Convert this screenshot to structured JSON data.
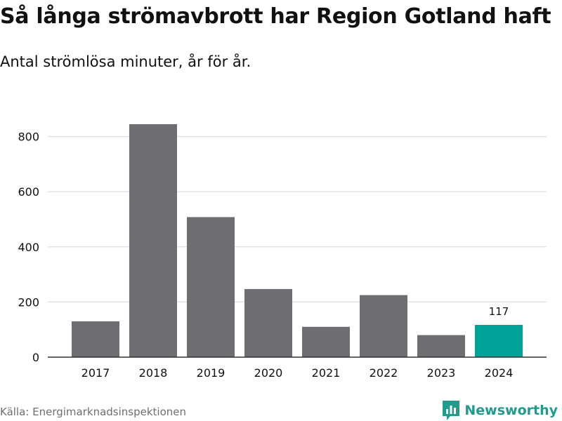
{
  "title": "Så långa strömavbrott har Region Gotland haft",
  "subtitle": "Antal strömlösa minuter, år för år.",
  "source": "Källa: Energimarknadsinspektionen",
  "brand": "Newsworthy",
  "colors": {
    "bar": "#6e6d72",
    "highlight": "#00a398",
    "grid": "#dddddd",
    "axis": "#333333",
    "text": "#111111",
    "brand": "#1f9c8e"
  },
  "chart_data": {
    "type": "bar",
    "categories": [
      "2017",
      "2018",
      "2019",
      "2020",
      "2021",
      "2022",
      "2023",
      "2024"
    ],
    "values": [
      130,
      845,
      508,
      247,
      110,
      225,
      80,
      117
    ],
    "highlight_index": 7,
    "data_labels": [
      {
        "index": 7,
        "text": "117"
      }
    ],
    "ylim": [
      0,
      850
    ],
    "yticks": [
      0,
      200,
      400,
      600,
      800
    ],
    "xlabel": "",
    "ylabel": "",
    "grid": true
  }
}
